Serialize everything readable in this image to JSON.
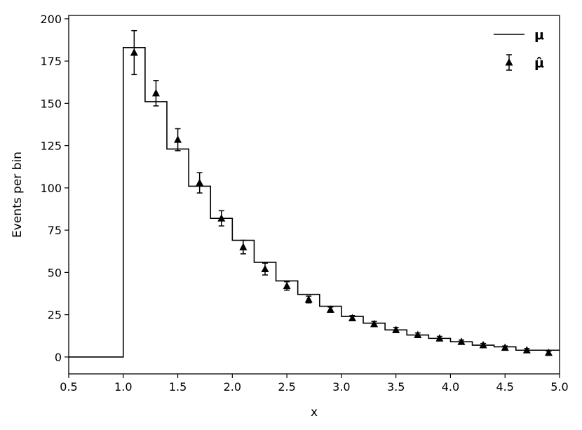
{
  "chart_data": {
    "type": "step+errorbar",
    "xlabel": "x",
    "ylabel": "Events per bin",
    "xlim": [
      0.5,
      5.0
    ],
    "ylim": [
      -10,
      202
    ],
    "xticks": [
      "0.5",
      "1.0",
      "1.5",
      "2.0",
      "2.5",
      "3.0",
      "3.5",
      "4.0",
      "4.5",
      "5.0"
    ],
    "yticks": [
      "0",
      "25",
      "50",
      "75",
      "100",
      "125",
      "150",
      "175",
      "200"
    ],
    "grid": false,
    "legend_position": "top-right",
    "series": [
      {
        "name": "μ",
        "kind": "step",
        "bin_edges": [
          0.5,
          1.0,
          1.2,
          1.4,
          1.6,
          1.8,
          2.0,
          2.2,
          2.4,
          2.6,
          2.8,
          3.0,
          3.2,
          3.4,
          3.6,
          3.8,
          4.0,
          4.2,
          4.4,
          4.6,
          4.8,
          5.0
        ],
        "values": [
          0,
          183,
          151,
          123,
          101,
          82,
          69,
          56,
          45,
          37,
          30,
          24,
          20,
          16,
          13,
          11,
          9,
          7,
          6,
          4,
          4
        ]
      },
      {
        "name": "μ̂",
        "kind": "errorbar",
        "marker": "triangle",
        "x": [
          1.1,
          1.3,
          1.5,
          1.7,
          1.9,
          2.1,
          2.3,
          2.5,
          2.7,
          2.9,
          3.1,
          3.3,
          3.5,
          3.7,
          3.9,
          4.1,
          4.3,
          4.5,
          4.7,
          4.9
        ],
        "y": [
          180,
          156,
          128.5,
          103,
          82,
          65,
          52,
          42,
          34,
          28,
          23,
          19.5,
          16,
          13,
          11,
          9,
          7,
          5.5,
          4,
          2.5
        ],
        "yerr": [
          13,
          7.5,
          6.5,
          6,
          4.5,
          4,
          3.5,
          2.5,
          2,
          1.5,
          1.5,
          1.5,
          1.5,
          1.2,
          1.2,
          1,
          1,
          1,
          1,
          1
        ]
      }
    ]
  }
}
